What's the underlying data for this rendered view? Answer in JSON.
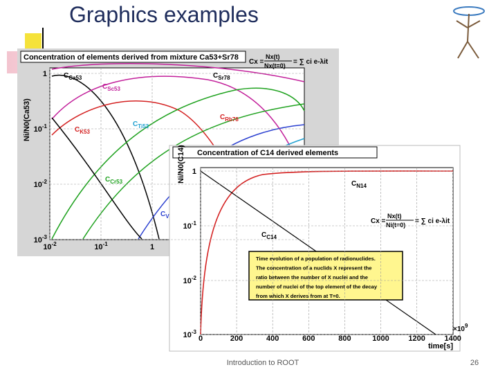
{
  "slide": {
    "title": "Graphics examples",
    "footer": "Introduction to ROOT",
    "page_number": "26",
    "figures": [
      {
        "title": "Concentration of elements derived from mixture Ca53+Sr78",
        "formula": {
          "lhs": "Cx =",
          "num": "Nx(t)",
          "den": "Nx(t=0)",
          "rhs": "= ∑ ci e-λit"
        },
        "ylabel": "Ni/N0(Ca53)",
        "yticks": [
          {
            "base": "1",
            "exp": ""
          },
          {
            "base": "10",
            "exp": "-1"
          },
          {
            "base": "10",
            "exp": "-2"
          },
          {
            "base": "10",
            "exp": "-3"
          }
        ],
        "xticks": [
          {
            "base": "10",
            "exp": "-2"
          },
          {
            "base": "10",
            "exp": "-1"
          },
          {
            "base": "1",
            "exp": ""
          }
        ],
        "curve_labels": [
          {
            "base": "C",
            "sub": "Ca53"
          },
          {
            "base": "C",
            "sub": "Sr78"
          },
          {
            "base": "C",
            "sub": "Sc53"
          },
          {
            "base": "C",
            "sub": "Ti53"
          },
          {
            "base": "C",
            "sub": "Rb78"
          },
          {
            "base": "C",
            "sub": "K53"
          },
          {
            "base": "C",
            "sub": "Cr53"
          },
          {
            "base": "C",
            "sub": "V"
          }
        ]
      },
      {
        "title": "Concentration of C14 derived elements",
        "formula": {
          "lhs": "Cx =",
          "num": "Nx(t)",
          "den": "Ni(t=0)",
          "rhs": "= ∑ ci e-λit"
        },
        "ylabel": "Ni/N0(C14)",
        "yticks": [
          {
            "base": "1",
            "exp": ""
          },
          {
            "base": "10",
            "exp": "-1"
          },
          {
            "base": "10",
            "exp": "-2"
          },
          {
            "base": "10",
            "exp": "-3"
          }
        ],
        "xticks": [
          "0",
          "200",
          "400",
          "600",
          "800",
          "1000",
          "1200",
          "1400"
        ],
        "xscale": {
          "base": "×10",
          "exp": "9"
        },
        "xlabel": "time[s]",
        "curve_labels": [
          {
            "base": "C",
            "sub": "N14"
          },
          {
            "base": "C",
            "sub": "C14"
          }
        ],
        "note": [
          "Time evolution of a population of radionuclides.",
          "The concentration of a nuclids X represent the",
          "ratio between the number of X nuclei and the",
          "number of nuclei of the top element of the decay",
          "from which X derives from at T=0."
        ]
      }
    ]
  }
}
